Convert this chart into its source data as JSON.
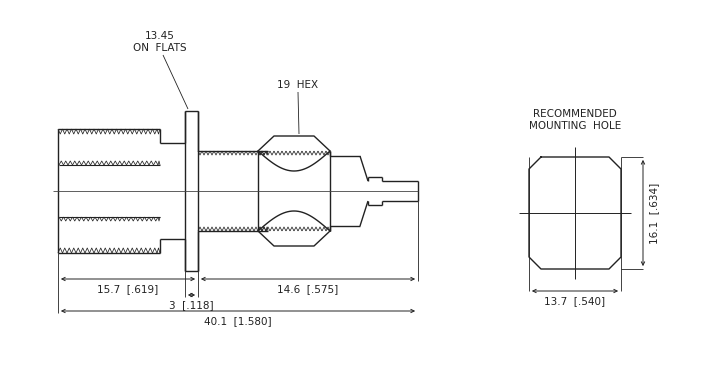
{
  "bg_color": "#ffffff",
  "line_color": "#222222",
  "annotations": {
    "on_flats": "13.45\nON  FLATS",
    "hex": "19  HEX",
    "dim_left": "15.7  [.619]",
    "dim_right": "14.6  [.575]",
    "dim_small": "3  [.118]",
    "dim_total": "40.1  [1.580]",
    "dim_top": "13.7  [.540]",
    "dim_side": "16.1  [.634]",
    "rec_hole_1": "RECOMMENDED",
    "rec_hole_2": "MOUNTING  HOLE"
  }
}
